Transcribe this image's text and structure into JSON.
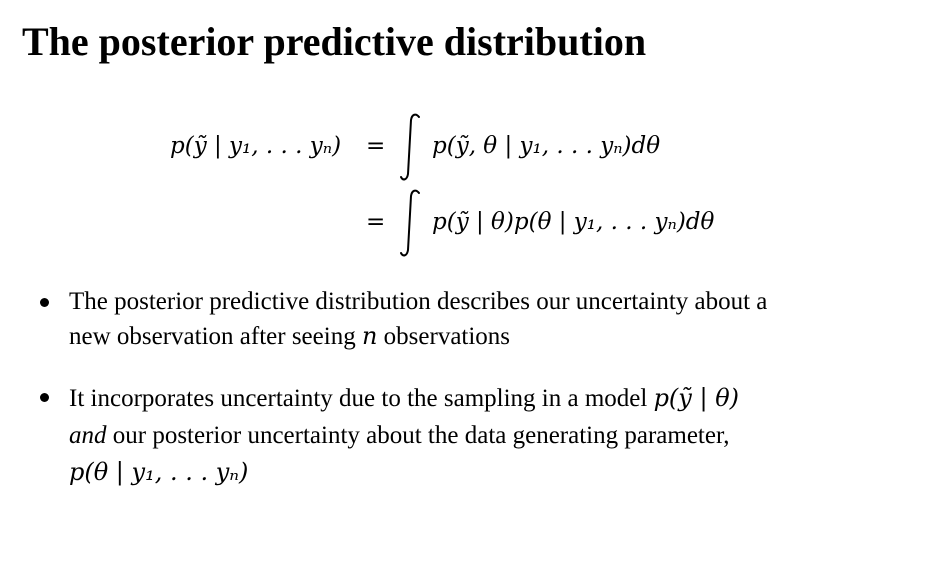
{
  "slide": {
    "title": "The posterior predictive distribution"
  },
  "equation": {
    "lhs": "p(ỹ | y₁, . . . yₙ)",
    "eq1": "=",
    "rhs1": "p(ỹ, θ | y₁, . . . yₙ)dθ",
    "eq2": "=",
    "rhs2": "p(ỹ | θ)p(θ | y₁, . . . yₙ)dθ"
  },
  "bullets": [
    {
      "line1": "The posterior predictive distribution describes our uncertainty about a",
      "line2_start": "new observation after seeing",
      "line2_var": "n",
      "line2_end": "observations"
    },
    {
      "line1_start": "It incorporates uncertainty due to the sampling in a model",
      "line1_math": "p(ỹ | θ)",
      "line2_em": "and",
      "line2_rest": "our posterior uncertainty about the data generating parameter,",
      "line3_math": "p(θ | y₁, . . . yₙ)"
    }
  ]
}
